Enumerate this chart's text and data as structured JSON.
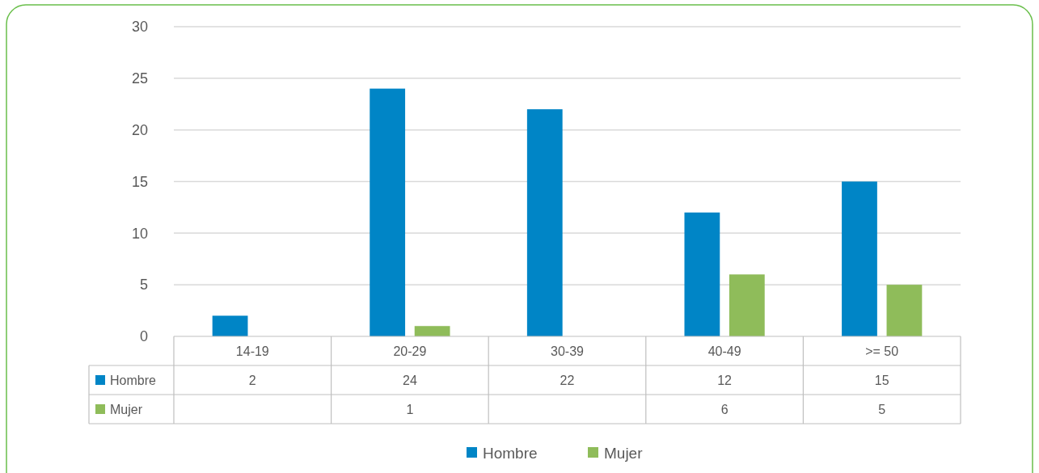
{
  "chart_data": {
    "type": "bar",
    "categories": [
      "14-19",
      "20-29",
      "30-39",
      "40-49",
      ">= 50"
    ],
    "series": [
      {
        "name": "Hombre",
        "color": "#0085c6",
        "values": [
          2,
          24,
          22,
          12,
          15
        ]
      },
      {
        "name": "Mujer",
        "color": "#8fbc5a",
        "values": [
          null,
          1,
          null,
          6,
          5
        ]
      }
    ],
    "ylim": [
      0,
      30
    ],
    "yticks": [
      0,
      5,
      10,
      15,
      20,
      25,
      30
    ],
    "grid": "y",
    "legend": "bottom",
    "data_labels": true
  }
}
